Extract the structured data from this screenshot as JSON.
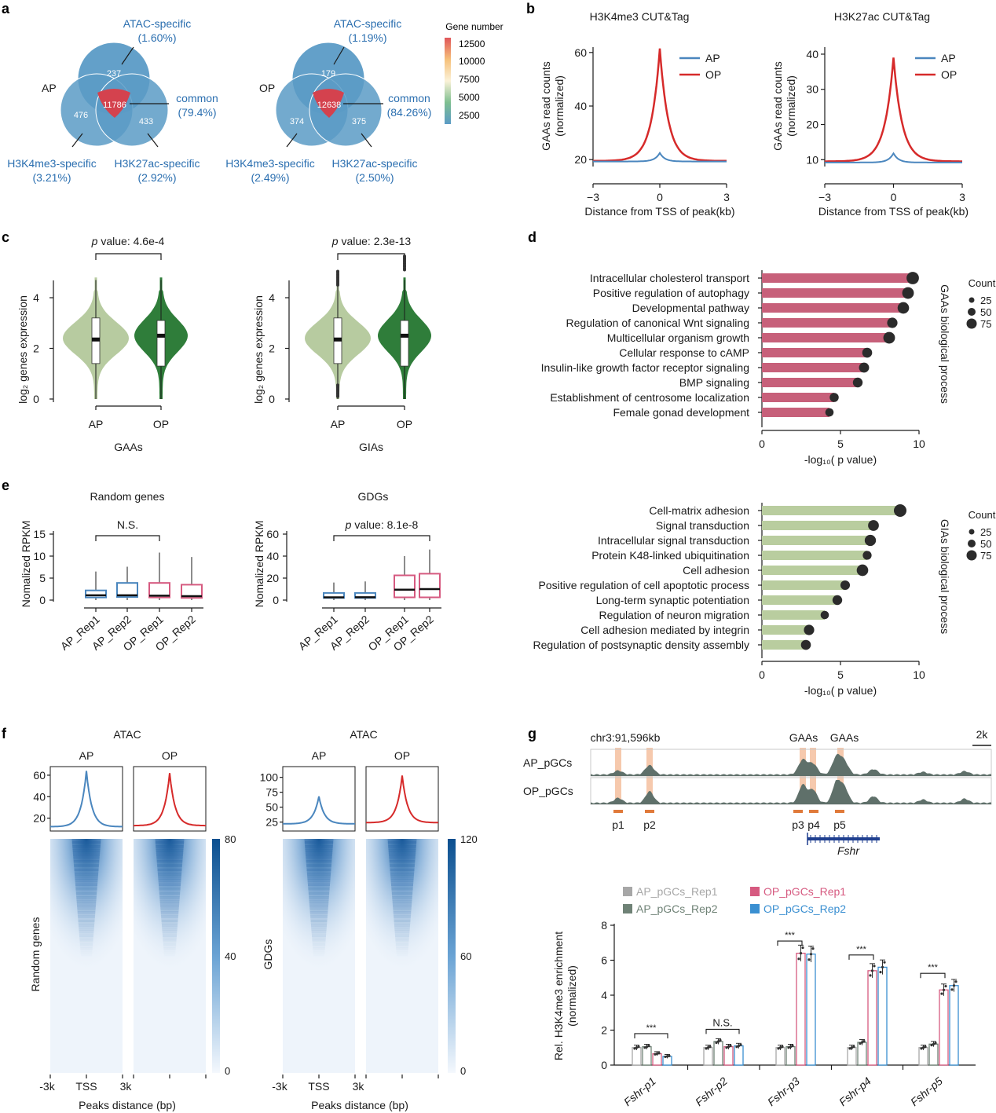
{
  "colors": {
    "ap_blue": "#4a86be",
    "op_red": "#d62a2a",
    "venn_fill": "#5b9bc6",
    "common_red": "#d4424e",
    "gaa_green_light": "#b7cba0",
    "gaa_green_dark": "#2f7d3a",
    "bar_pink": "#c7607a",
    "bar_green": "#b9cd9f",
    "dot": "#2b2b2b",
    "heat_max": "#0b4f8f",
    "peak_highlight": "#f6c9ad",
    "track_gray": "#5f706a",
    "gene_blue": "#1f3f8f",
    "ap_rep1": "#a7a7a7",
    "ap_rep2": "#6f8276",
    "op_rep1": "#d65a80",
    "op_rep2": "#3a8fd1"
  },
  "panel_letters": [
    "a",
    "b",
    "c",
    "d",
    "e",
    "f",
    "g"
  ],
  "panel_a": {
    "venns": [
      {
        "group": "AP",
        "top_label": "ATAC-specific",
        "top_pct": "(1.60%)",
        "top": "237",
        "left": "476",
        "right": "433",
        "center": "11786",
        "common_label": "common",
        "common_pct": "(79.4%)",
        "left_label": "H3K4me3-specific",
        "left_pct": "(3.21%)",
        "right_label": "H3K27ac-specific",
        "right_pct": "(2.92%)"
      },
      {
        "group": "OP",
        "top_label": "ATAC-specific",
        "top_pct": "(1.19%)",
        "top": "179",
        "left": "374",
        "right": "375",
        "center": "12638",
        "common_label": "common",
        "common_pct": "(84.26%)",
        "left_label": "H3K4me3-specific",
        "left_pct": "(2.49%)",
        "right_label": "H3K27ac-specific",
        "right_pct": "(2.50%)"
      }
    ],
    "colorbar_title": "Gene number",
    "colorbar_ticks": [
      "12500",
      "10000",
      "7500",
      "5000",
      "2500"
    ]
  },
  "panel_b": [
    {
      "title": "H3K4me3 CUT&Tag",
      "ylabel1": "GAAs read counts",
      "ylabel2": "(normalized)",
      "yticks": [
        "60",
        "40",
        "20"
      ],
      "xticks": [
        "−3",
        "0",
        "3"
      ],
      "xlabel": "Distance from TSS of peak(kb)",
      "legend": [
        "AP",
        "OP"
      ]
    },
    {
      "title": "H3K27ac CUT&Tag",
      "ylabel1": "GAAs read counts",
      "ylabel2": "(normalized)",
      "yticks": [
        "40",
        "30",
        "20",
        "10"
      ],
      "xticks": [
        "−3",
        "0",
        "3"
      ],
      "xlabel": "Distance from TSS of peak(kb)",
      "legend": [
        "AP",
        "OP"
      ]
    }
  ],
  "panel_c": [
    {
      "pvalue_italic": "p",
      "pvalue": " value: 4.6e-4",
      "ylabel": "log₂ genes expression",
      "yticks": [
        "4",
        "2",
        "0"
      ],
      "groups": [
        "AP",
        "OP"
      ],
      "xlabel": "GAAs"
    },
    {
      "pvalue_italic": "p",
      "pvalue": " value: 2.3e-13",
      "ylabel": "log₂ genes expression",
      "yticks": [
        "4",
        "2",
        "0"
      ],
      "groups": [
        "AP",
        "OP"
      ],
      "xlabel": "GIAs"
    }
  ],
  "panel_d": {
    "xlabel": "-log₁₀( p value)",
    "xticks": [
      "0",
      "5",
      "10"
    ],
    "count_title": "Count",
    "count_values": [
      "25",
      "50",
      "75"
    ],
    "gaas": {
      "side_label": "GAAs  biological process",
      "terms": [
        "Intracellular cholesterol transport",
        "Positive regulation of autophagy",
        "Developmental pathway",
        "Regulation of canonical Wnt signaling",
        "Multicellular organism growth",
        "Cellular response to cAMP",
        "Insulin-like growth factor receptor signaling",
        "BMP signaling",
        "Establishment of centrosome localization",
        "Female gonad development"
      ],
      "values": [
        9.6,
        9.3,
        9.0,
        8.3,
        8.1,
        6.7,
        6.5,
        6.1,
        4.6,
        4.3
      ],
      "counts": [
        78,
        70,
        68,
        55,
        70,
        50,
        52,
        48,
        40,
        32
      ]
    },
    "gias": {
      "side_label": "GIAs  biological process",
      "terms": [
        "Cell-matrix adhesion",
        "Signal transduction",
        "Intracellular signal transduction",
        "Protein K48-linked ubiquitination",
        "Cell adhesion",
        "Positive regulation of cell apoptotic process",
        "Long-term synaptic potentiation",
        "Regulation of neuron migration",
        "Cell adhesion mediated by integrin",
        "Regulation of postsynaptic density assembly"
      ],
      "values": [
        8.8,
        7.1,
        6.9,
        6.7,
        6.4,
        5.3,
        4.8,
        4.0,
        3.0,
        2.8
      ],
      "counts": [
        80,
        60,
        65,
        38,
        68,
        45,
        48,
        32,
        55,
        50
      ]
    }
  },
  "panel_e": [
    {
      "title": "Random genes",
      "sig": "N.S.",
      "ylabel": "Nomalized RPKM",
      "yticks": [
        "15",
        "10",
        "5",
        "0"
      ],
      "ymax": 15,
      "groups": [
        "AP_Rep1",
        "AP_Rep2",
        "OP_Rep1",
        "OP_Rep2"
      ],
      "boxes": [
        {
          "q1": 0.6,
          "med": 1.1,
          "q3": 2.2,
          "lo": 0,
          "hi": 6.5
        },
        {
          "q1": 0.7,
          "med": 1.1,
          "q3": 3.9,
          "lo": 0,
          "hi": 7.6
        },
        {
          "q1": 0.6,
          "med": 1.0,
          "q3": 3.9,
          "lo": 0,
          "hi": 10.8
        },
        {
          "q1": 0.5,
          "med": 0.9,
          "q3": 3.5,
          "lo": 0,
          "hi": 9.8
        }
      ]
    },
    {
      "title": "GDGs",
      "sig_italic": "p",
      "sig": " value: 8.1e-8",
      "ylabel": "Nomalized RPKM",
      "yticks": [
        "60",
        "40",
        "20",
        "0"
      ],
      "ymax": 60,
      "groups": [
        "AP_Rep1",
        "AP_Rep2",
        "OP_Rep1",
        "OP_Rep2"
      ],
      "boxes": [
        {
          "q1": 2,
          "med": 2.5,
          "q3": 6.5,
          "lo": 0,
          "hi": 16
        },
        {
          "q1": 2,
          "med": 2.6,
          "q3": 6.5,
          "lo": 0,
          "hi": 17
        },
        {
          "q1": 2.5,
          "med": 9.5,
          "q3": 22.5,
          "lo": 0,
          "hi": 40
        },
        {
          "q1": 2.5,
          "med": 10,
          "q3": 24,
          "lo": 0,
          "hi": 46
        }
      ]
    }
  ],
  "panel_f": [
    {
      "title": "ATAC",
      "cols": [
        "AP",
        "OP"
      ],
      "yticks": [
        "60",
        "40",
        "20"
      ],
      "ylabel": "Random genes",
      "cbar_ticks": [
        "80",
        "40",
        "0"
      ],
      "xticks": [
        "-3k",
        "TSS",
        "3k"
      ],
      "xlabel": "Peaks distance (bp)"
    },
    {
      "title": "ATAC",
      "cols": [
        "AP",
        "OP"
      ],
      "yticks": [
        "100",
        "75",
        "50",
        "25"
      ],
      "ylabel": "GDGs",
      "cbar_ticks": [
        "120",
        "60",
        "0"
      ],
      "xticks": [
        "-3k",
        "TSS",
        "3k"
      ],
      "xlabel": "Peaks distance (bp)"
    }
  ],
  "panel_g": {
    "locus": "chr3:91,596kb",
    "scale": "2k",
    "gaa_labels": [
      "GAAs",
      "GAAs"
    ],
    "tracks": [
      "AP_pGCs",
      "OP_pGCs"
    ],
    "primers": [
      "p1",
      "p2",
      "p3",
      "p4",
      "p5"
    ],
    "gene": "Fshr",
    "legend": [
      "AP_pGCs_Rep1",
      "AP_pGCs_Rep2",
      "OP_pGCs_Rep1",
      "OP_pGCs_Rep2"
    ],
    "ylabel1": "Rel. H3K4me3 enrichment",
    "ylabel2": "(normalized)",
    "yticks": [
      "8",
      "6",
      "4",
      "2",
      "0"
    ],
    "groups": [
      "Fshr-p1",
      "Fshr-p2",
      "Fshr-p3",
      "Fshr-p4",
      "Fshr-p5"
    ],
    "sig": [
      "***",
      "N.S.",
      "***",
      "***",
      "***"
    ],
    "values": [
      [
        1.0,
        1.05,
        0.65,
        0.5
      ],
      [
        1.0,
        1.35,
        1.05,
        1.1
      ],
      [
        1.0,
        1.05,
        6.4,
        6.35
      ],
      [
        1.0,
        1.3,
        5.4,
        5.6
      ],
      [
        1.0,
        1.2,
        4.3,
        4.55
      ]
    ]
  }
}
